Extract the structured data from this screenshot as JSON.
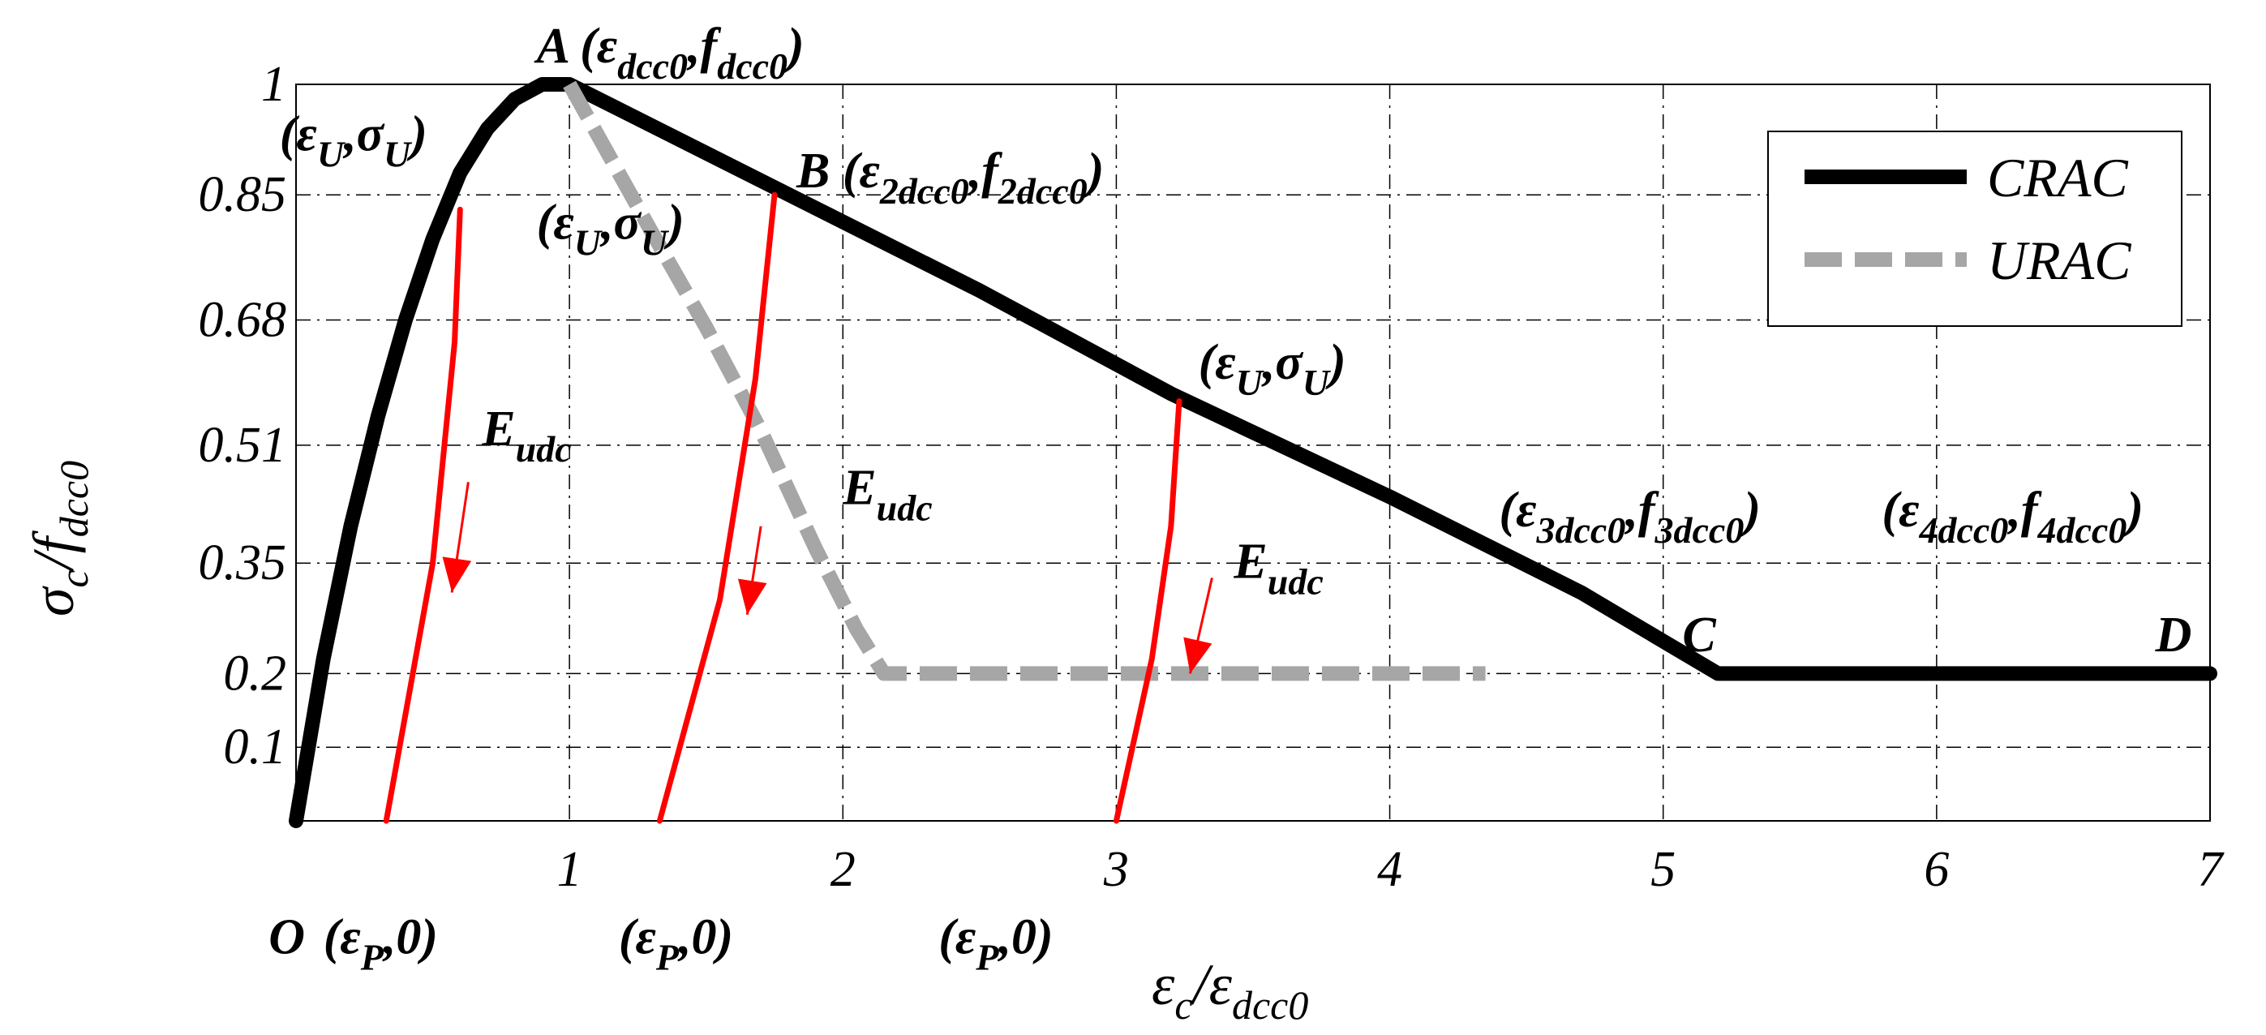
{
  "chart_data": {
    "type": "line",
    "xlabel": "εc/εdcc0",
    "ylabel": "σc/fdcc0",
    "xlim": [
      0,
      7
    ],
    "ylim": [
      0,
      1
    ],
    "xticks": [
      1,
      2,
      3,
      4,
      5,
      6,
      7
    ],
    "yticks": [
      0.1,
      0.2,
      0.35,
      0.51,
      0.68,
      0.85,
      1
    ],
    "grid": true,
    "legend": {
      "placement": "top-right",
      "entries": [
        "CRAC",
        "URAC"
      ]
    },
    "colors": {
      "CRAC": "#000000",
      "URAC": "#a6a6a6",
      "unloading": "#ff0000"
    },
    "series": [
      {
        "name": "CRAC",
        "color": "#000000",
        "style": "solid",
        "x": [
          0,
          0.1,
          0.2,
          0.3,
          0.4,
          0.5,
          0.6,
          0.7,
          0.8,
          0.9,
          1.0,
          1.75,
          2.5,
          3.2,
          4.0,
          4.7,
          5.2,
          7.0
        ],
        "y": [
          0,
          0.22,
          0.4,
          0.55,
          0.68,
          0.79,
          0.88,
          0.94,
          0.98,
          1.0,
          1.0,
          0.86,
          0.72,
          0.58,
          0.44,
          0.31,
          0.2,
          0.2
        ]
      },
      {
        "name": "URAC",
        "color": "#a6a6a6",
        "style": "dashed",
        "x": [
          1.0,
          1.3,
          1.5,
          1.7,
          1.9,
          2.05,
          2.15,
          4.35
        ],
        "y": [
          1.0,
          0.8,
          0.67,
          0.53,
          0.37,
          0.26,
          0.2,
          0.2
        ]
      },
      {
        "name": "",
        "color": "#ff0000",
        "style": "solid",
        "x": [
          0.33,
          0.5,
          0.58,
          0.6
        ],
        "y": [
          0,
          0.35,
          0.65,
          0.83
        ]
      },
      {
        "name": "",
        "color": "#ff0000",
        "style": "solid",
        "x": [
          1.33,
          1.55,
          1.68,
          1.75
        ],
        "y": [
          0,
          0.3,
          0.6,
          0.85
        ]
      },
      {
        "name": "",
        "color": "#ff0000",
        "style": "solid",
        "x": [
          3.0,
          3.13,
          3.2,
          3.23
        ],
        "y": [
          0,
          0.22,
          0.4,
          0.57
        ]
      }
    ],
    "arrows": [
      {
        "x1": 0.63,
        "y1": 0.46,
        "x2": 0.57,
        "y2": 0.31
      },
      {
        "x1": 1.7,
        "y1": 0.4,
        "x2": 1.65,
        "y2": 0.28
      },
      {
        "x1": 3.35,
        "y1": 0.33,
        "x2": 3.27,
        "y2": 0.2
      }
    ],
    "annotations": [
      {
        "id": "O",
        "parts": [
          [
            "O",
            ""
          ]
        ],
        "x": -0.1,
        "y": -0.18
      },
      {
        "id": "p1",
        "parts": [
          [
            "(ε",
            ""
          ],
          [
            "P",
            "sub"
          ],
          [
            ",0)",
            ""
          ]
        ],
        "x": 0.1,
        "y": -0.18
      },
      {
        "id": "p2",
        "parts": [
          [
            "(ε",
            ""
          ],
          [
            "P",
            "sub"
          ],
          [
            ",0)",
            ""
          ]
        ],
        "x": 1.18,
        "y": -0.18
      },
      {
        "id": "p3",
        "parts": [
          [
            "(ε",
            ""
          ],
          [
            "P",
            "sub"
          ],
          [
            ",0)",
            ""
          ]
        ],
        "x": 2.35,
        "y": -0.18
      },
      {
        "id": "A",
        "parts": [
          [
            "A (ε",
            ""
          ],
          [
            "dcc0",
            "sub"
          ],
          [
            ",f",
            ""
          ],
          [
            "dcc0",
            "sub"
          ],
          [
            ")",
            ""
          ]
        ],
        "x": 0.88,
        "y": 1.03
      },
      {
        "id": "B",
        "parts": [
          [
            "B (ε",
            ""
          ],
          [
            "2dcc0",
            "sub"
          ],
          [
            ",f",
            ""
          ],
          [
            "2dcc0",
            "sub"
          ],
          [
            ")",
            ""
          ]
        ],
        "x": 1.83,
        "y": 0.86
      },
      {
        "id": "U1",
        "parts": [
          [
            "(ε",
            ""
          ],
          [
            "U",
            "sub"
          ],
          [
            ",σ",
            ""
          ],
          [
            "U",
            "sub"
          ],
          [
            ")",
            ""
          ]
        ],
        "x": -0.06,
        "y": 0.91
      },
      {
        "id": "U2",
        "parts": [
          [
            "(ε",
            ""
          ],
          [
            "U",
            "sub"
          ],
          [
            ",σ",
            ""
          ],
          [
            "U",
            "sub"
          ],
          [
            ")",
            ""
          ]
        ],
        "x": 0.88,
        "y": 0.79
      },
      {
        "id": "U3",
        "parts": [
          [
            "(ε",
            ""
          ],
          [
            "U",
            "sub"
          ],
          [
            ",σ",
            ""
          ],
          [
            "U",
            "sub"
          ],
          [
            ")",
            ""
          ]
        ],
        "x": 3.3,
        "y": 0.6
      },
      {
        "id": "E1",
        "parts": [
          [
            "E",
            ""
          ],
          [
            "udc",
            "sub"
          ]
        ],
        "x": 0.68,
        "y": 0.51
      },
      {
        "id": "E2",
        "parts": [
          [
            "E",
            ""
          ],
          [
            "udc",
            "sub"
          ]
        ],
        "x": 2.0,
        "y": 0.43
      },
      {
        "id": "E3",
        "parts": [
          [
            "E",
            ""
          ],
          [
            "udc",
            "sub"
          ]
        ],
        "x": 3.43,
        "y": 0.33
      },
      {
        "id": "P3",
        "parts": [
          [
            "(ε",
            ""
          ],
          [
            "3dcc0",
            "sub"
          ],
          [
            ",f",
            ""
          ],
          [
            "3dcc0",
            "sub"
          ],
          [
            ")",
            ""
          ]
        ],
        "x": 4.4,
        "y": 0.4
      },
      {
        "id": "P4",
        "parts": [
          [
            "(ε",
            ""
          ],
          [
            "4dcc0",
            "sub"
          ],
          [
            ",f",
            ""
          ],
          [
            "4dcc0",
            "sub"
          ],
          [
            ")",
            ""
          ]
        ],
        "x": 5.8,
        "y": 0.4
      },
      {
        "id": "C",
        "parts": [
          [
            "C",
            ""
          ]
        ],
        "x": 5.07,
        "y": 0.23
      },
      {
        "id": "D",
        "parts": [
          [
            "D",
            ""
          ]
        ],
        "x": 6.8,
        "y": 0.23
      }
    ]
  }
}
